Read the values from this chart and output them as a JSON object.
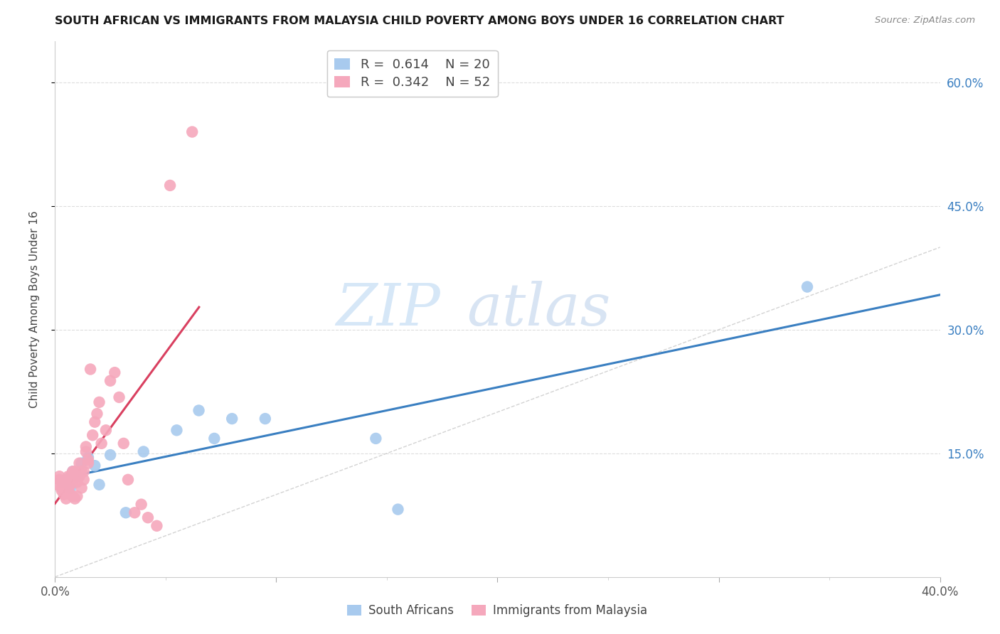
{
  "title": "SOUTH AFRICAN VS IMMIGRANTS FROM MALAYSIA CHILD POVERTY AMONG BOYS UNDER 16 CORRELATION CHART",
  "source": "Source: ZipAtlas.com",
  "ylabel": "Child Poverty Among Boys Under 16",
  "x_min": 0.0,
  "x_max": 0.4,
  "y_min": 0.0,
  "y_max": 0.65,
  "y_ticks": [
    0.15,
    0.3,
    0.45,
    0.6
  ],
  "y_tick_labels": [
    "15.0%",
    "30.0%",
    "45.0%",
    "60.0%"
  ],
  "x_ticks": [
    0.0,
    0.1,
    0.2,
    0.3,
    0.4
  ],
  "x_tick_labels": [
    "0.0%",
    "",
    "",
    "",
    "40.0%"
  ],
  "watermark_zip": "ZIP",
  "watermark_atlas": "atlas",
  "legend_blue_R": "0.614",
  "legend_blue_N": "20",
  "legend_pink_R": "0.342",
  "legend_pink_N": "52",
  "blue_color": "#A8CAEE",
  "pink_color": "#F5A8BC",
  "blue_line_color": "#3A7FC1",
  "pink_line_color": "#D94060",
  "ref_line_color": "#C8C8C8",
  "title_color": "#1A1A1A",
  "source_color": "#888888",
  "axis_label_color": "#444444",
  "tick_label_color": "#555555",
  "grid_color": "#DDDDDD",
  "blue_scatter_x": [
    0.003,
    0.005,
    0.007,
    0.008,
    0.01,
    0.012,
    0.015,
    0.018,
    0.02,
    0.025,
    0.032,
    0.04,
    0.055,
    0.065,
    0.072,
    0.08,
    0.095,
    0.145,
    0.155,
    0.34
  ],
  "blue_scatter_y": [
    0.115,
    0.118,
    0.108,
    0.128,
    0.122,
    0.138,
    0.145,
    0.135,
    0.112,
    0.148,
    0.078,
    0.152,
    0.178,
    0.202,
    0.168,
    0.192,
    0.192,
    0.168,
    0.082,
    0.352
  ],
  "pink_scatter_x": [
    0.001,
    0.002,
    0.002,
    0.003,
    0.003,
    0.004,
    0.004,
    0.004,
    0.005,
    0.005,
    0.005,
    0.006,
    0.006,
    0.006,
    0.007,
    0.007,
    0.007,
    0.008,
    0.008,
    0.008,
    0.009,
    0.009,
    0.01,
    0.01,
    0.011,
    0.011,
    0.012,
    0.012,
    0.013,
    0.013,
    0.014,
    0.014,
    0.015,
    0.015,
    0.016,
    0.017,
    0.018,
    0.019,
    0.02,
    0.021,
    0.023,
    0.025,
    0.027,
    0.029,
    0.031,
    0.033,
    0.036,
    0.039,
    0.042,
    0.046,
    0.052,
    0.062
  ],
  "pink_scatter_y": [
    0.112,
    0.118,
    0.122,
    0.105,
    0.108,
    0.1,
    0.112,
    0.116,
    0.095,
    0.108,
    0.116,
    0.105,
    0.11,
    0.122,
    0.1,
    0.112,
    0.122,
    0.098,
    0.128,
    0.116,
    0.095,
    0.128,
    0.098,
    0.115,
    0.122,
    0.138,
    0.108,
    0.128,
    0.118,
    0.128,
    0.152,
    0.158,
    0.138,
    0.142,
    0.252,
    0.172,
    0.188,
    0.198,
    0.212,
    0.162,
    0.178,
    0.238,
    0.248,
    0.218,
    0.162,
    0.118,
    0.078,
    0.088,
    0.072,
    0.062,
    0.475,
    0.54
  ]
}
